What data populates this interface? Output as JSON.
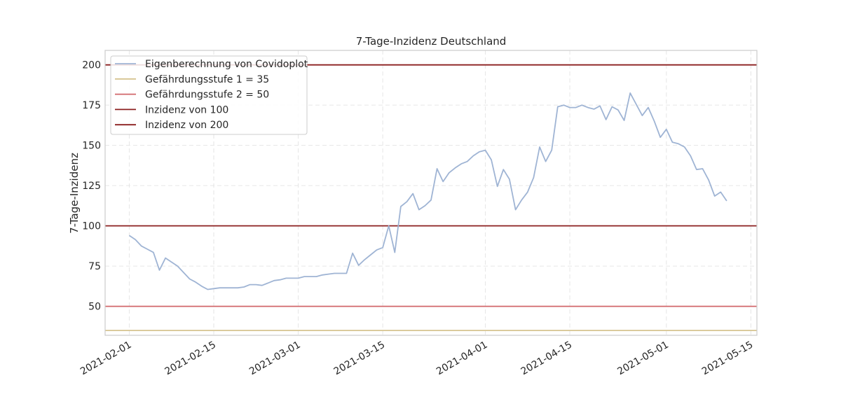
{
  "chart_data": {
    "type": "line",
    "title": "7-Tage-Inzidenz Deutschland",
    "xlabel": "",
    "ylabel": "7-Tage-Inzidenz",
    "xlim": [
      "2021-01-28",
      "2021-05-16"
    ],
    "ylim": [
      32,
      209
    ],
    "x_ticks": [
      "2021-02-01",
      "2021-02-15",
      "2021-03-01",
      "2021-03-15",
      "2021-04-01",
      "2021-04-15",
      "2021-05-01",
      "2021-05-15"
    ],
    "y_ticks": [
      50,
      75,
      100,
      125,
      150,
      175,
      200
    ],
    "grid": true,
    "legend_position": "top-left",
    "series": [
      {
        "name": "Eigenberechnung von Covidoplot",
        "color": "#9fb4d4",
        "x": [
          "2021-02-01",
          "2021-02-02",
          "2021-02-03",
          "2021-02-04",
          "2021-02-05",
          "2021-02-06",
          "2021-02-07",
          "2021-02-08",
          "2021-02-09",
          "2021-02-10",
          "2021-02-11",
          "2021-02-12",
          "2021-02-13",
          "2021-02-14",
          "2021-02-15",
          "2021-02-16",
          "2021-02-17",
          "2021-02-18",
          "2021-02-19",
          "2021-02-20",
          "2021-02-21",
          "2021-02-22",
          "2021-02-23",
          "2021-02-24",
          "2021-02-25",
          "2021-02-26",
          "2021-02-27",
          "2021-02-28",
          "2021-03-01",
          "2021-03-02",
          "2021-03-03",
          "2021-03-04",
          "2021-03-05",
          "2021-03-06",
          "2021-03-07",
          "2021-03-08",
          "2021-03-09",
          "2021-03-10",
          "2021-03-11",
          "2021-03-12",
          "2021-03-13",
          "2021-03-14",
          "2021-03-15",
          "2021-03-16",
          "2021-03-17",
          "2021-03-18",
          "2021-03-19",
          "2021-03-20",
          "2021-03-21",
          "2021-03-22",
          "2021-03-23",
          "2021-03-24",
          "2021-03-25",
          "2021-03-26",
          "2021-03-27",
          "2021-03-28",
          "2021-03-29",
          "2021-03-30",
          "2021-03-31",
          "2021-04-01",
          "2021-04-02",
          "2021-04-03",
          "2021-04-04",
          "2021-04-05",
          "2021-04-06",
          "2021-04-07",
          "2021-04-08",
          "2021-04-09",
          "2021-04-10",
          "2021-04-11",
          "2021-04-12",
          "2021-04-13",
          "2021-04-14",
          "2021-04-15",
          "2021-04-16",
          "2021-04-17",
          "2021-04-18",
          "2021-04-19",
          "2021-04-20",
          "2021-04-21",
          "2021-04-22",
          "2021-04-23",
          "2021-04-24",
          "2021-04-25",
          "2021-04-26",
          "2021-04-27",
          "2021-04-28",
          "2021-04-29",
          "2021-04-30",
          "2021-05-01",
          "2021-05-02",
          "2021-05-03",
          "2021-05-04",
          "2021-05-05",
          "2021-05-06",
          "2021-05-07",
          "2021-05-08",
          "2021-05-09",
          "2021-05-10",
          "2021-05-11"
        ],
        "values": [
          94,
          91.5,
          87.5,
          85.5,
          83.5,
          72.5,
          80,
          77.5,
          75,
          71,
          67,
          65,
          62.5,
          60.5,
          61,
          61.5,
          61.5,
          61.5,
          61.5,
          62,
          63.5,
          63.5,
          63,
          64.5,
          66,
          66.5,
          67.5,
          67.5,
          67.5,
          68.5,
          68.5,
          68.5,
          69.5,
          70,
          70.5,
          70.5,
          70.5,
          83,
          75.5,
          79,
          82,
          85,
          86.5,
          100,
          83.5,
          112,
          115,
          120,
          110,
          112.5,
          116,
          135.5,
          127.5,
          133,
          136,
          138.5,
          140,
          143.5,
          146,
          147,
          141,
          124.5,
          135,
          129,
          110,
          116,
          121,
          130,
          149,
          140,
          147,
          174,
          175,
          173.5,
          173.5,
          175,
          173.5,
          172.5,
          174.5,
          166,
          174,
          172,
          165.5,
          182.5,
          175.5,
          168.5,
          173.5,
          165,
          155,
          160,
          152,
          151,
          149,
          143.5,
          135,
          135.5,
          128.5,
          118.5,
          121,
          115.5
        ]
      }
    ],
    "reference_lines": [
      {
        "name": "Gefährdungsstufe 1 = 35",
        "value": 35,
        "color": "#d6c38f"
      },
      {
        "name": "Gefährdungsstufe 2 = 50",
        "value": 50,
        "color": "#d1676b"
      },
      {
        "name": "Inzidenz von 100",
        "value": 100,
        "color": "#8b1f1f"
      },
      {
        "name": "Inzidenz von 200",
        "value": 200,
        "color": "#8b1f1f"
      }
    ]
  }
}
